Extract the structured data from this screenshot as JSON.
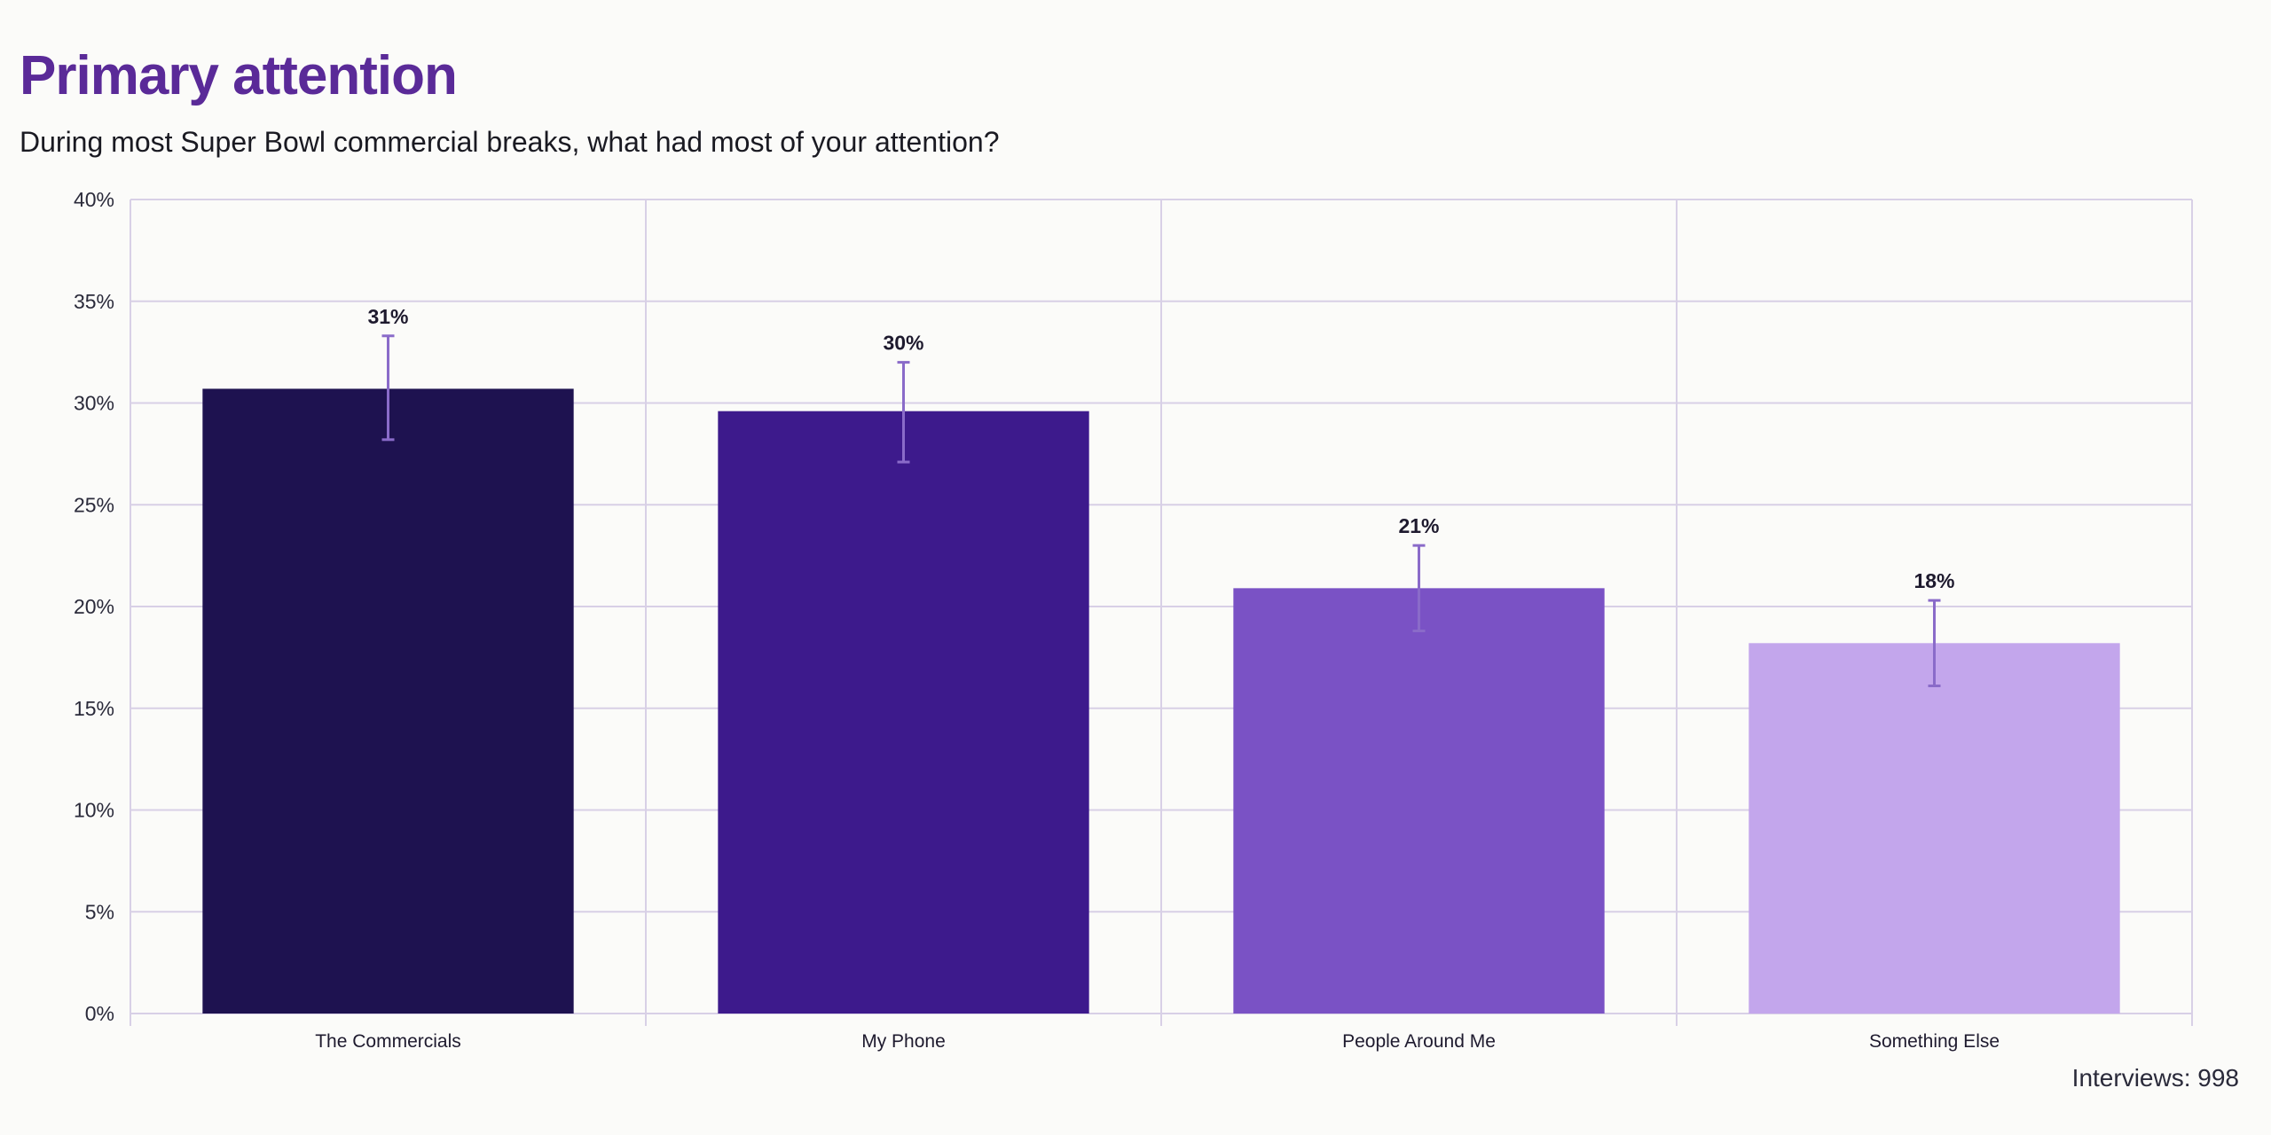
{
  "chart_data": {
    "type": "bar",
    "title": "Primary attention",
    "subtitle": "During most Super Bowl commercial breaks, what had most of your attention?",
    "xlabel": "",
    "ylabel": "",
    "ylim": [
      0,
      40
    ],
    "yticks": [
      0,
      5,
      10,
      15,
      20,
      25,
      30,
      35,
      40
    ],
    "ytick_labels": [
      "0%",
      "5%",
      "10%",
      "15%",
      "20%",
      "25%",
      "30%",
      "35%",
      "40%"
    ],
    "grid": true,
    "categories": [
      "The Commercials",
      "My Phone",
      "People Around Me",
      "Something Else"
    ],
    "values": [
      30.7,
      29.6,
      20.9,
      18.2
    ],
    "data_labels": [
      "31%",
      "30%",
      "21%",
      "18%"
    ],
    "error_low": [
      28.2,
      27.1,
      18.8,
      16.1
    ],
    "error_high": [
      33.3,
      32.0,
      23.0,
      20.3
    ],
    "colors": [
      "#1e1250",
      "#3d1a8c",
      "#7a52c5",
      "#c3a6ec"
    ],
    "error_color": "#8a6bc9",
    "footnote": "Interviews: 998"
  }
}
